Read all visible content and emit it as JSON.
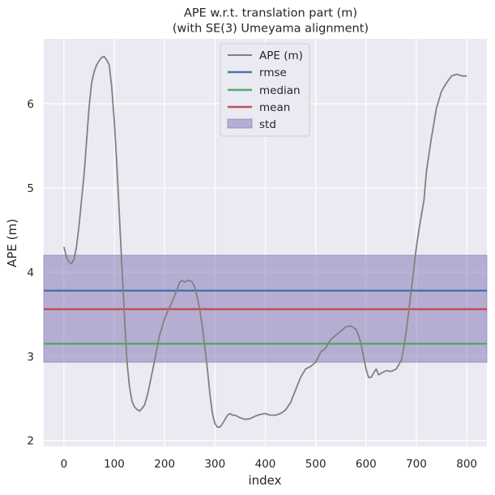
{
  "chart_data": {
    "type": "line",
    "title": "APE w.r.t. translation part (m)",
    "subtitle": "(with SE(3) Umeyama alignment)",
    "xlabel": "index",
    "ylabel": "APE (m)",
    "xlim": [
      -40,
      840
    ],
    "ylim": [
      1.93,
      6.77
    ],
    "xticks": [
      0,
      100,
      200,
      300,
      400,
      500,
      600,
      700,
      800
    ],
    "yticks": [
      2,
      3,
      4,
      5,
      6
    ],
    "grid": true,
    "legend_position": "top-center",
    "series": [
      {
        "name": "APE (m)",
        "color": "#808080",
        "x": [
          0,
          5,
          10,
          15,
          20,
          25,
          30,
          40,
          50,
          55,
          60,
          65,
          70,
          75,
          80,
          85,
          90,
          95,
          100,
          105,
          110,
          115,
          120,
          125,
          130,
          135,
          140,
          145,
          150,
          155,
          160,
          165,
          170,
          180,
          190,
          200,
          205,
          210,
          215,
          220,
          225,
          230,
          235,
          240,
          245,
          250,
          255,
          260,
          265,
          270,
          275,
          280,
          285,
          290,
          295,
          300,
          305,
          310,
          315,
          320,
          325,
          330,
          335,
          340,
          350,
          360,
          370,
          380,
          390,
          400,
          410,
          420,
          430,
          440,
          450,
          460,
          470,
          480,
          490,
          500,
          510,
          520,
          530,
          540,
          550,
          560,
          570,
          580,
          585,
          590,
          595,
          600,
          605,
          610,
          615,
          620,
          625,
          630,
          640,
          650,
          660,
          670,
          675,
          680,
          685,
          690,
          695,
          700,
          705,
          710,
          715,
          720,
          730,
          740,
          750,
          760,
          770,
          780,
          790,
          800
        ],
        "y": [
          4.3,
          4.18,
          4.12,
          4.1,
          4.15,
          4.3,
          4.55,
          5.15,
          5.95,
          6.25,
          6.38,
          6.46,
          6.51,
          6.55,
          6.56,
          6.52,
          6.46,
          6.2,
          5.8,
          5.3,
          4.7,
          4.1,
          3.5,
          2.95,
          2.65,
          2.47,
          2.4,
          2.37,
          2.35,
          2.38,
          2.42,
          2.52,
          2.65,
          2.95,
          3.25,
          3.45,
          3.52,
          3.58,
          3.65,
          3.72,
          3.8,
          3.88,
          3.9,
          3.88,
          3.9,
          3.9,
          3.88,
          3.82,
          3.7,
          3.55,
          3.35,
          3.1,
          2.85,
          2.55,
          2.32,
          2.2,
          2.16,
          2.16,
          2.2,
          2.25,
          2.3,
          2.32,
          2.3,
          2.3,
          2.27,
          2.25,
          2.26,
          2.29,
          2.31,
          2.32,
          2.3,
          2.3,
          2.32,
          2.36,
          2.45,
          2.6,
          2.75,
          2.85,
          2.88,
          2.93,
          3.05,
          3.1,
          3.2,
          3.25,
          3.3,
          3.35,
          3.36,
          3.32,
          3.25,
          3.15,
          3.0,
          2.85,
          2.75,
          2.75,
          2.8,
          2.85,
          2.78,
          2.8,
          2.83,
          2.82,
          2.85,
          2.95,
          3.1,
          3.3,
          3.55,
          3.8,
          4.05,
          4.3,
          4.5,
          4.68,
          4.85,
          5.2,
          5.6,
          5.95,
          6.15,
          6.25,
          6.33,
          6.35,
          6.33,
          6.33
        ]
      },
      {
        "name": "rmse",
        "color": "#4c72b0",
        "value": 3.78
      },
      {
        "name": "median",
        "color": "#55a868",
        "value": 3.15
      },
      {
        "name": "mean",
        "color": "#c44e52",
        "value": 3.56
      },
      {
        "name": "std",
        "color": "#8172b2",
        "range": [
          2.93,
          4.2
        ]
      }
    ]
  }
}
